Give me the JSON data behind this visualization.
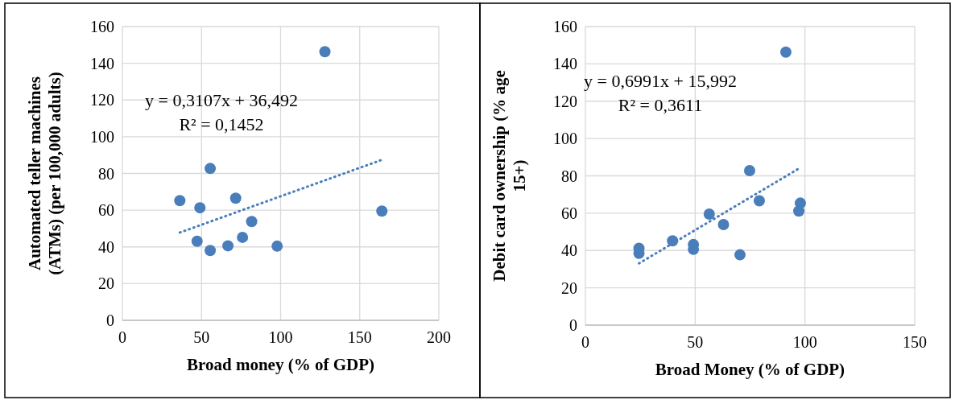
{
  "chart_data": [
    {
      "type": "scatter",
      "xlabel": "Broad money (% of GDP)",
      "ylabel": "Automated teller machines (ATMs) (per 100,000 adults)",
      "xlim": [
        0,
        200
      ],
      "xticks": [
        0,
        50,
        100,
        150,
        200
      ],
      "ylim": [
        0,
        160
      ],
      "yticks": [
        0,
        20,
        40,
        60,
        80,
        100,
        120,
        140,
        160
      ],
      "grid": true,
      "annotations": [
        "y = 0,3107x + 36,492",
        "R² = 0,1452"
      ],
      "series": [
        {
          "marker": "circle",
          "color": "#4a7ebb",
          "x": [
            128,
            55.5,
            36.3,
            71.6,
            49,
            164,
            81.7,
            47.2,
            75.9,
            66.7,
            55.5,
            97.8
          ],
          "values": [
            146.3,
            82.7,
            65.2,
            66.5,
            61.3,
            59.5,
            53.8,
            43.1,
            45.2,
            40.6,
            38,
            40.4
          ]
        },
        {
          "type": "line",
          "color": "#4a7ebb",
          "line_style": "dotted",
          "x": [
            36.3,
            164
          ],
          "values": [
            47.8,
            87.4
          ]
        }
      ]
    },
    {
      "type": "scatter",
      "xlabel": "Broad Money (% of GDP)",
      "ylabel": "Debit card ownership (% age 15+)",
      "xlim": [
        0,
        150
      ],
      "xticks": [
        0,
        50,
        100,
        150
      ],
      "ylim": [
        0,
        160
      ],
      "yticks": [
        0,
        20,
        40,
        60,
        80,
        100,
        120,
        140,
        160
      ],
      "grid": true,
      "annotations": [
        "y = 0,6991x + 15,992",
        "R² = 0,3611"
      ],
      "series": [
        {
          "marker": "circle",
          "color": "#4a7ebb",
          "x": [
            91.3,
            74.8,
            79.2,
            97.9,
            97.2,
            56.4,
            62.9,
            39.7,
            49.2,
            49.2,
            24.4,
            24.4,
            70.4
          ],
          "values": [
            146.3,
            82.8,
            66.6,
            65.4,
            61.1,
            59.5,
            53.9,
            45.2,
            43.2,
            40.6,
            41.2,
            38.5,
            37.7
          ]
        },
        {
          "type": "line",
          "color": "#4a7ebb",
          "line_style": "dotted",
          "x": [
            24.4,
            97.9
          ],
          "values": [
            33.1,
            84.4
          ]
        }
      ]
    }
  ]
}
